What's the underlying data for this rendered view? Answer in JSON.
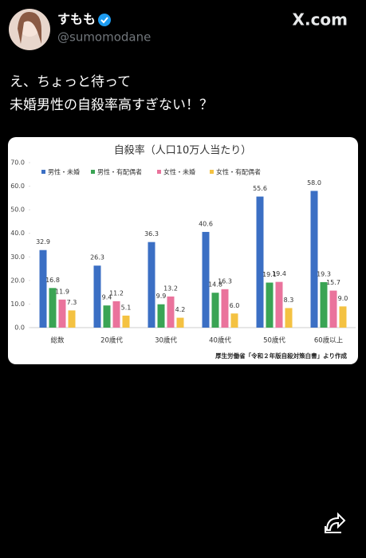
{
  "post": {
    "author_name": "すもも",
    "handle": "@sumomodane",
    "brand": "X.com",
    "text_lines": [
      "え、ちょっと待って",
      "未婚男性の自殺率高すぎない！？"
    ]
  },
  "chart_data": {
    "type": "bar",
    "title": "自殺率（人口10万人当たり）",
    "categories": [
      "総数",
      "20歳代",
      "30歳代",
      "40歳代",
      "50歳代",
      "60歳以上"
    ],
    "series": [
      {
        "name": "男性・未婚",
        "color": "#3b6fc4",
        "values": [
          32.9,
          26.3,
          36.3,
          40.6,
          55.6,
          58.0
        ],
        "value_labels": [
          "32.9",
          "26.3",
          "36.3",
          "40.6",
          "55.6",
          "58.0"
        ]
      },
      {
        "name": "男性・有配偶者",
        "color": "#3aa454",
        "values": [
          16.8,
          9.4,
          9.9,
          14.8,
          19.1,
          19.3
        ],
        "value_labels": [
          "16.8",
          "9.4",
          "9.9",
          "14.8",
          "19.1",
          "19.3"
        ]
      },
      {
        "name": "女性・未婚",
        "color": "#ea739c",
        "values": [
          11.9,
          11.2,
          13.2,
          16.3,
          19.4,
          15.7
        ],
        "value_labels": [
          "11.9",
          "11.2",
          "13.2",
          "16.3",
          "19.4",
          "15.7"
        ]
      },
      {
        "name": "女性・有配偶者",
        "color": "#f4c242",
        "values": [
          7.3,
          5.1,
          4.2,
          6.0,
          8.3,
          9.0
        ],
        "value_labels": [
          "7.3",
          "5.1",
          "4.2",
          "6.0",
          "8.3",
          "9.0"
        ]
      }
    ],
    "ylim": [
      0,
      70
    ],
    "yticks": [
      {
        "value": 0,
        "label": "0.0"
      },
      {
        "value": 10,
        "label": "10.0"
      },
      {
        "value": 20,
        "label": "20.0"
      },
      {
        "value": 30,
        "label": "30.0"
      },
      {
        "value": 40,
        "label": "40.0"
      },
      {
        "value": 50,
        "label": "50.0"
      },
      {
        "value": 60,
        "label": "60.0"
      },
      {
        "value": 70,
        "label": "70.0"
      }
    ],
    "legend": "top",
    "source": "厚生労働省「令和２年版自殺対策白書」より作成"
  }
}
